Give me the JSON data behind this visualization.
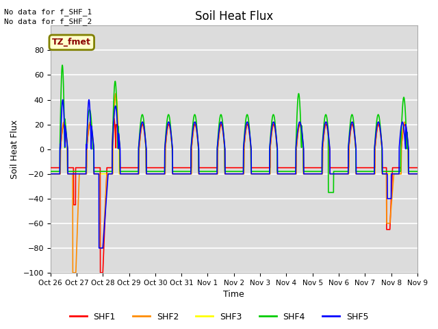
{
  "title": "Soil Heat Flux",
  "ylabel": "Soil Heat Flux",
  "xlabel": "Time",
  "top_text_1": "No data for f_SHF_1",
  "top_text_2": "No data for f_SHF_2",
  "box_label": "TZ_fmet",
  "ylim": [
    -100,
    100
  ],
  "yticks": [
    -100,
    -80,
    -60,
    -40,
    -20,
    0,
    20,
    40,
    60,
    80
  ],
  "x_labels": [
    "Oct 26",
    "Oct 27",
    "Oct 28",
    "Oct 29",
    "Oct 30",
    "Oct 31",
    "Nov 1",
    "Nov 2",
    "Nov 3",
    "Nov 4",
    "Nov 5",
    "Nov 6",
    "Nov 7",
    "Nov 8",
    "Nov 9"
  ],
  "colors": {
    "SHF1": "#ff0000",
    "SHF2": "#ff8c00",
    "SHF3": "#ffff00",
    "SHF4": "#00cc00",
    "SHF5": "#0000ff"
  },
  "bg_color": "#dcdcdc",
  "grid_color": "#ffffff",
  "fig_width": 6.4,
  "fig_height": 4.8,
  "dpi": 100
}
